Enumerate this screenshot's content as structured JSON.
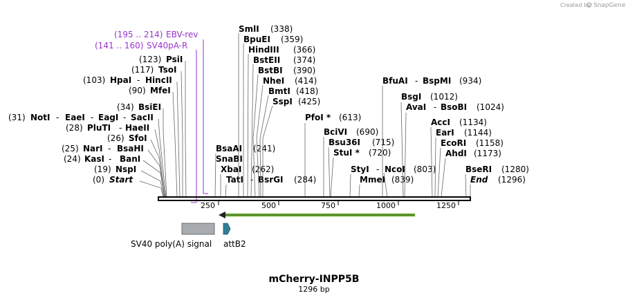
{
  "header": {
    "credit": "Created by",
    "brand": "SnapGene"
  },
  "map": {
    "title": "mCherry-INPP5B",
    "length_label": "1296 bp",
    "total_bp": 1296,
    "axis_ticks": [
      "250",
      "500",
      "750",
      "1000",
      "1250"
    ]
  },
  "primers": [
    {
      "range": "(195 .. 214)",
      "name": "EBV-rev",
      "start": 195,
      "end": 214,
      "dir": "reverse"
    },
    {
      "range": "(141 .. 160)",
      "name": "SV40pA-R",
      "start": 141,
      "end": 160,
      "dir": "reverse"
    }
  ],
  "left_sites": [
    {
      "pos_text": "(0)",
      "names": [
        "Start"
      ],
      "italic": true,
      "bp": 0
    },
    {
      "pos_text": "(19)",
      "names": [
        "NspI"
      ],
      "bp": 19
    },
    {
      "pos_text": "(24)",
      "names": [
        "KasI",
        "BanI"
      ],
      "bp": 24
    },
    {
      "pos_text": "(25)",
      "names": [
        "NarI",
        "BsaHI"
      ],
      "bp": 25
    },
    {
      "pos_text": "(26)",
      "names": [
        "SfoI"
      ],
      "bp": 26
    },
    {
      "pos_text": "(28)",
      "names": [
        "PluTI",
        "HaeII"
      ],
      "bp": 28
    },
    {
      "pos_text": "(31)",
      "names": [
        "NotI",
        "EaeI",
        "EagI",
        "SacII"
      ],
      "bp": 31
    },
    {
      "pos_text": "(34)",
      "names": [
        "BsiEI"
      ],
      "bp": 34
    },
    {
      "pos_text": "(90)",
      "names": [
        "MfeI"
      ],
      "bp": 90
    },
    {
      "pos_text": "(103)",
      "names": [
        "HpaI",
        "HincII"
      ],
      "bp": 103
    },
    {
      "pos_text": "(117)",
      "names": [
        "TsoI"
      ],
      "bp": 117
    },
    {
      "pos_text": "(123)",
      "names": [
        "PsiI"
      ],
      "bp": 123
    }
  ],
  "mid_sites": [
    {
      "names": [
        "SmlI"
      ],
      "pos_text": "(338)",
      "bp": 338
    },
    {
      "names": [
        "BpuEI"
      ],
      "pos_text": "(359)",
      "bp": 359
    },
    {
      "names": [
        "HindIII"
      ],
      "pos_text": "(366)",
      "bp": 366
    },
    {
      "names": [
        "BstEII"
      ],
      "pos_text": "(374)",
      "bp": 374
    },
    {
      "names": [
        "BstBI"
      ],
      "pos_text": "(390)",
      "bp": 390
    },
    {
      "names": [
        "NheI"
      ],
      "pos_text": "(414)",
      "bp": 414
    },
    {
      "names": [
        "BmtI"
      ],
      "pos_text": "(418)",
      "bp": 418
    },
    {
      "names": [
        "SspI"
      ],
      "pos_text": "(425)",
      "bp": 425
    },
    {
      "names": [
        "BsaAI"
      ],
      "pos_text": "(241)",
      "bp": 241
    },
    {
      "names": [
        "SnaBI"
      ],
      "pos_text": "",
      "bp": 241
    },
    {
      "names": [
        "XbaI"
      ],
      "pos_text": "(262)",
      "bp": 262
    },
    {
      "names": [
        "TatI",
        "BsrGI"
      ],
      "pos_text": "(284)",
      "bp": 284
    },
    {
      "names": [
        "PfoI *"
      ],
      "pos_text": "(613)",
      "bp": 613
    },
    {
      "names": [
        "BciVI"
      ],
      "pos_text": "(690)",
      "bp": 690
    },
    {
      "names": [
        "Bsu36I"
      ],
      "pos_text": "(715)",
      "bp": 715
    },
    {
      "names": [
        "StuI *"
      ],
      "pos_text": "(720)",
      "bp": 720
    },
    {
      "names": [
        "StyI",
        "NcoI"
      ],
      "pos_text": "(803)",
      "bp": 803
    },
    {
      "names": [
        "MmeI"
      ],
      "pos_text": "(839)",
      "bp": 839
    },
    {
      "names": [
        "BfuAI",
        "BspMI"
      ],
      "pos_text": "(934)",
      "bp": 934
    },
    {
      "names": [
        "BsgI"
      ],
      "pos_text": "(1012)",
      "bp": 1012
    },
    {
      "names": [
        "AvaI",
        "BsoBI"
      ],
      "pos_text": "(1024)",
      "bp": 1024
    },
    {
      "names": [
        "AccI"
      ],
      "pos_text": "(1134)",
      "bp": 1134
    },
    {
      "names": [
        "EarI"
      ],
      "pos_text": "(1144)",
      "bp": 1144
    },
    {
      "names": [
        "EcoRI"
      ],
      "pos_text": "(1158)",
      "bp": 1158
    },
    {
      "names": [
        "AhdI"
      ],
      "pos_text": "(1173)",
      "bp": 1173
    },
    {
      "names": [
        "BseRI"
      ],
      "pos_text": "(1280)",
      "bp": 1280
    },
    {
      "names": [
        "End"
      ],
      "pos_text": "(1296)",
      "italic": true,
      "bp": 1296
    }
  ],
  "features": [
    {
      "name": "SV40 poly(A) signal",
      "start": 100,
      "end": 235,
      "color": "#a8acb0",
      "kind": "box"
    },
    {
      "name": "attB2",
      "start": 273,
      "end": 298,
      "color": "#2e7f97",
      "kind": "arrow"
    },
    {
      "name": "",
      "start": 273,
      "end": 1090,
      "color": "#84d13c",
      "kind": "orf-reverse"
    }
  ],
  "colors": {
    "primer": "#9933cc",
    "backbone": "#000000",
    "orf": "#84d13c"
  }
}
